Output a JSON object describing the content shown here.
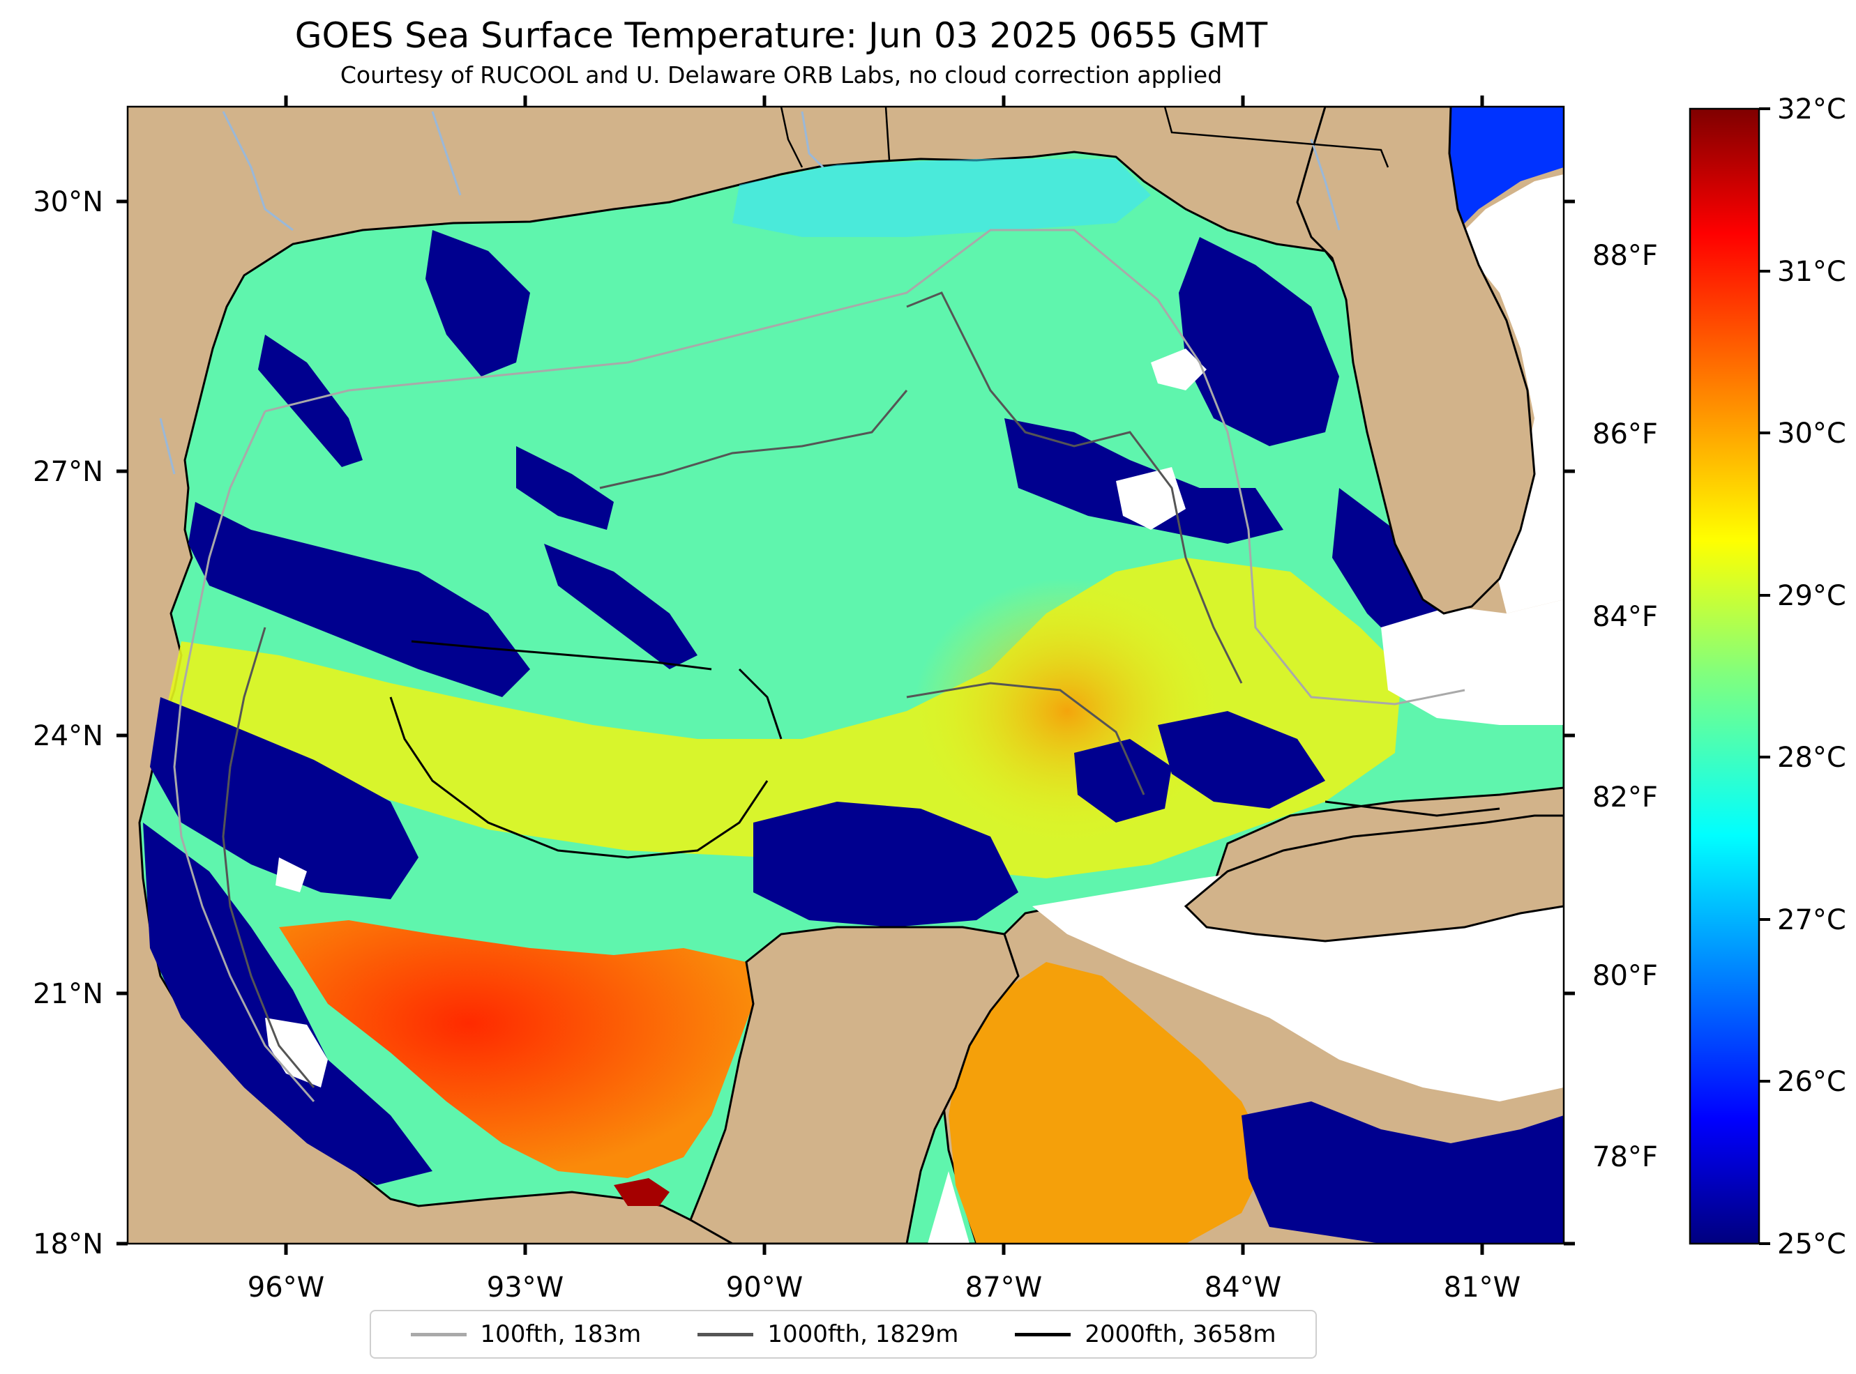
{
  "title": "GOES Sea Surface Temperature: Jun 03 2025 0655 GMT",
  "subtitle": "Courtesy of RUCOOL and U. Delaware ORB Labs, no cloud correction applied",
  "colors": {
    "land": "#d2b38a",
    "cloud": "#ffffff",
    "river": "#9ab8d8",
    "coast": "#000000",
    "bathy_100": "#a9a9a9",
    "bathy_1000": "#555555",
    "bathy_2000": "#000000",
    "cool_patch": "#00008f",
    "mid_water": "#5ff5ad",
    "warm_water": "#e6f51e",
    "hot_water": "#fa5a0a"
  },
  "map": {
    "lon_labels": [
      "96°W",
      "93°W",
      "90°W",
      "87°W",
      "84°W",
      "81°W"
    ],
    "lat_labels": [
      "30°N",
      "27°N",
      "24°N",
      "21°N",
      "18°N"
    ],
    "fahrenheit_labels": [
      "88°F",
      "86°F",
      "84°F",
      "82°F",
      "80°F",
      "78°F"
    ],
    "celsius_labels": [
      "32°C",
      "31°C",
      "30°C",
      "29°C",
      "28°C",
      "27°C",
      "26°C",
      "25°C"
    ],
    "colorbar_range_c": [
      25,
      32
    ],
    "colormap": "jet"
  },
  "legend": {
    "items": [
      {
        "label": "100fth, 183m",
        "color": "#a9a9a9"
      },
      {
        "label": "1000fth, 1829m",
        "color": "#555555"
      },
      {
        "label": "2000fth, 3658m",
        "color": "#000000"
      }
    ]
  }
}
